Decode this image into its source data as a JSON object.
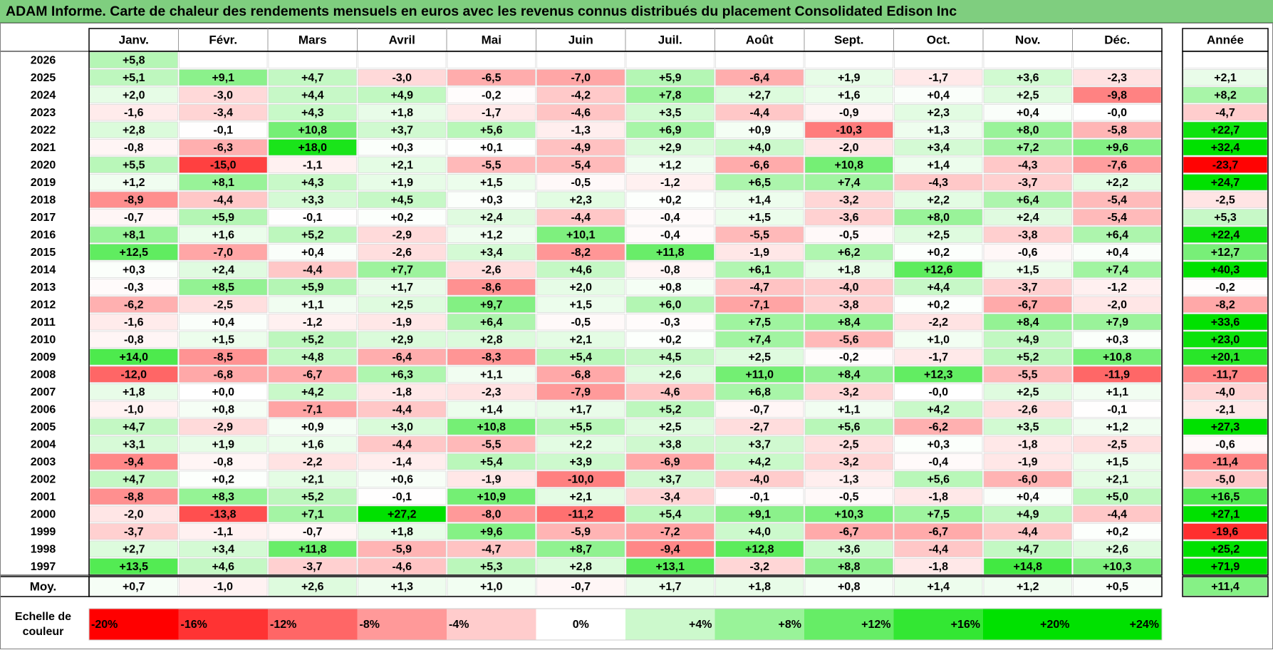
{
  "title": "ADAM Informe. Carte de chaleur des rendements mensuels en euros avec les revenus connus distribués du placement Consolidated Edison Inc",
  "chart_data": {
    "type": "heatmap",
    "months": [
      "Janv.",
      "Févr.",
      "Mars",
      "Avril",
      "Mai",
      "Juin",
      "Juil.",
      "Août",
      "Sept.",
      "Oct.",
      "Nov.",
      "Déc."
    ],
    "year_header": "Année",
    "rows": [
      {
        "year": "2026",
        "values": [
          "+5,8",
          "",
          "",
          "",
          "",
          "",
          "",
          "",
          "",
          "",
          "",
          ""
        ],
        "annual": ""
      },
      {
        "year": "2025",
        "values": [
          "+5,1",
          "+9,1",
          "+4,7",
          "-3,0",
          "-6,5",
          "-7,0",
          "+5,9",
          "-6,4",
          "+1,9",
          "-1,7",
          "+3,6",
          "-2,3"
        ],
        "annual": "+2,1"
      },
      {
        "year": "2024",
        "values": [
          "+2,0",
          "-3,0",
          "+4,4",
          "+4,9",
          "-0,2",
          "-4,2",
          "+7,8",
          "+2,7",
          "+1,6",
          "+0,4",
          "+2,5",
          "-9,8"
        ],
        "annual": "+8,2"
      },
      {
        "year": "2023",
        "values": [
          "-1,6",
          "-3,4",
          "+4,3",
          "+1,8",
          "-1,7",
          "-4,6",
          "+3,5",
          "-4,4",
          "-0,9",
          "+2,3",
          "+0,4",
          "-0,0"
        ],
        "annual": "-4,7"
      },
      {
        "year": "2022",
        "values": [
          "+2,8",
          "-0,1",
          "+10,8",
          "+3,7",
          "+5,6",
          "-1,3",
          "+6,9",
          "+0,9",
          "-10,3",
          "+1,3",
          "+8,0",
          "-5,8"
        ],
        "annual": "+22,7"
      },
      {
        "year": "2021",
        "values": [
          "-0,8",
          "-6,3",
          "+18,0",
          "+0,3",
          "+0,1",
          "-4,9",
          "+2,9",
          "+4,0",
          "-2,0",
          "+3,4",
          "+7,2",
          "+9,6"
        ],
        "annual": "+32,4"
      },
      {
        "year": "2020",
        "values": [
          "+5,5",
          "-15,0",
          "-1,1",
          "+2,1",
          "-5,5",
          "-5,4",
          "+1,2",
          "-6,6",
          "+10,8",
          "+1,4",
          "-4,3",
          "-7,6"
        ],
        "annual": "-23,7"
      },
      {
        "year": "2019",
        "values": [
          "+1,2",
          "+8,1",
          "+4,3",
          "+1,9",
          "+1,5",
          "-0,5",
          "-1,2",
          "+6,5",
          "+7,4",
          "-4,3",
          "-3,7",
          "+2,2"
        ],
        "annual": "+24,7"
      },
      {
        "year": "2018",
        "values": [
          "-8,9",
          "-4,4",
          "+3,3",
          "+4,5",
          "+0,3",
          "+2,3",
          "+0,2",
          "+1,4",
          "-3,2",
          "+2,2",
          "+6,4",
          "-5,4"
        ],
        "annual": "-2,5"
      },
      {
        "year": "2017",
        "values": [
          "-0,7",
          "+5,9",
          "-0,1",
          "+0,2",
          "+2,4",
          "-4,4",
          "-0,4",
          "+1,5",
          "-3,6",
          "+8,0",
          "+2,4",
          "-5,4"
        ],
        "annual": "+5,3"
      },
      {
        "year": "2016",
        "values": [
          "+8,1",
          "+1,6",
          "+5,2",
          "-2,9",
          "+1,2",
          "+10,1",
          "-0,4",
          "-5,5",
          "-0,5",
          "+2,5",
          "-3,8",
          "+6,4"
        ],
        "annual": "+22,4"
      },
      {
        "year": "2015",
        "values": [
          "+12,5",
          "-7,0",
          "+0,4",
          "-2,6",
          "+3,4",
          "-8,2",
          "+11,8",
          "-1,9",
          "+6,2",
          "+0,2",
          "-0,6",
          "+0,4"
        ],
        "annual": "+12,7"
      },
      {
        "year": "2014",
        "values": [
          "+0,3",
          "+2,4",
          "-4,4",
          "+7,7",
          "-2,6",
          "+4,6",
          "-0,8",
          "+6,1",
          "+1,8",
          "+12,6",
          "+1,5",
          "+7,4"
        ],
        "annual": "+40,3"
      },
      {
        "year": "2013",
        "values": [
          "-0,3",
          "+8,5",
          "+5,9",
          "+1,7",
          "-8,6",
          "+2,0",
          "+0,8",
          "-4,7",
          "-4,0",
          "+4,4",
          "-3,7",
          "-1,2"
        ],
        "annual": "-0,2"
      },
      {
        "year": "2012",
        "values": [
          "-6,2",
          "-2,5",
          "+1,1",
          "+2,5",
          "+9,7",
          "+1,5",
          "+6,0",
          "-7,1",
          "-3,8",
          "+0,2",
          "-6,7",
          "-2,0"
        ],
        "annual": "-8,2"
      },
      {
        "year": "2011",
        "values": [
          "-1,6",
          "+0,4",
          "-1,2",
          "-1,9",
          "+6,4",
          "-0,5",
          "-0,3",
          "+7,5",
          "+8,4",
          "-2,2",
          "+8,4",
          "+7,9"
        ],
        "annual": "+33,6"
      },
      {
        "year": "2010",
        "values": [
          "-0,8",
          "+1,5",
          "+5,2",
          "+2,9",
          "+2,8",
          "+2,1",
          "+0,2",
          "+7,4",
          "-5,6",
          "+1,0",
          "+4,9",
          "+0,3"
        ],
        "annual": "+23,0"
      },
      {
        "year": "2009",
        "values": [
          "+14,0",
          "-8,5",
          "+4,8",
          "-6,4",
          "-8,3",
          "+5,4",
          "+4,5",
          "+2,5",
          "-0,2",
          "-1,7",
          "+5,2",
          "+10,8"
        ],
        "annual": "+20,1"
      },
      {
        "year": "2008",
        "values": [
          "-12,0",
          "-6,8",
          "-6,7",
          "+6,3",
          "+1,1",
          "-6,8",
          "+2,6",
          "+11,0",
          "+8,4",
          "+12,3",
          "-5,5",
          "-11,9"
        ],
        "annual": "-11,7"
      },
      {
        "year": "2007",
        "values": [
          "+1,8",
          "+0,0",
          "+4,2",
          "-1,8",
          "-2,3",
          "-7,9",
          "-4,6",
          "+6,8",
          "-3,2",
          "-0,0",
          "+2,5",
          "+1,1"
        ],
        "annual": "-4,0"
      },
      {
        "year": "2006",
        "values": [
          "-1,0",
          "+0,8",
          "-7,1",
          "-4,4",
          "+1,4",
          "+1,7",
          "+5,2",
          "-0,7",
          "+1,1",
          "+4,2",
          "-2,6",
          "-0,1"
        ],
        "annual": "-2,1"
      },
      {
        "year": "2005",
        "values": [
          "+4,7",
          "-2,9",
          "+0,9",
          "+3,0",
          "+10,8",
          "+5,5",
          "+2,5",
          "-2,7",
          "+5,6",
          "-6,2",
          "+3,5",
          "+1,2"
        ],
        "annual": "+27,3"
      },
      {
        "year": "2004",
        "values": [
          "+3,1",
          "+1,9",
          "+1,6",
          "-4,4",
          "-5,5",
          "+2,2",
          "+3,8",
          "+3,7",
          "-2,5",
          "+0,3",
          "-1,8",
          "-2,5"
        ],
        "annual": "-0,6"
      },
      {
        "year": "2003",
        "values": [
          "-9,4",
          "-0,8",
          "-2,2",
          "-1,4",
          "+5,4",
          "+3,9",
          "-6,9",
          "+4,2",
          "-3,2",
          "-0,4",
          "-1,9",
          "+1,5"
        ],
        "annual": "-11,4"
      },
      {
        "year": "2002",
        "values": [
          "+4,7",
          "+0,2",
          "+2,1",
          "+0,6",
          "-1,9",
          "-10,0",
          "+3,7",
          "-4,0",
          "-1,3",
          "+5,6",
          "-6,0",
          "+2,1"
        ],
        "annual": "-5,0"
      },
      {
        "year": "2001",
        "values": [
          "-8,8",
          "+8,3",
          "+5,2",
          "-0,1",
          "+10,9",
          "+2,1",
          "-3,4",
          "-0,1",
          "-0,5",
          "-1,8",
          "+0,4",
          "+5,0"
        ],
        "annual": "+16,5"
      },
      {
        "year": "2000",
        "values": [
          "-2,0",
          "-13,8",
          "+7,1",
          "+27,2",
          "-8,0",
          "-11,2",
          "+5,4",
          "+9,1",
          "+10,3",
          "+7,5",
          "+4,9",
          "-4,4"
        ],
        "annual": "+27,1"
      },
      {
        "year": "1999",
        "values": [
          "-3,7",
          "-1,1",
          "-0,7",
          "+1,8",
          "+9,6",
          "-5,9",
          "-7,2",
          "+4,0",
          "-6,7",
          "-6,7",
          "-4,4",
          "+0,2"
        ],
        "annual": "-19,6"
      },
      {
        "year": "1998",
        "values": [
          "+2,7",
          "+3,4",
          "+11,8",
          "-5,9",
          "-4,7",
          "+8,7",
          "-9,4",
          "+12,8",
          "+3,6",
          "-4,4",
          "+4,7",
          "+2,6"
        ],
        "annual": "+25,2"
      },
      {
        "year": "1997",
        "values": [
          "+13,5",
          "+4,6",
          "-3,7",
          "-4,6",
          "+5,3",
          "+2,8",
          "+13,1",
          "-3,2",
          "+8,8",
          "-1,8",
          "+14,8",
          "+10,3"
        ],
        "annual": "+71,9"
      }
    ],
    "average": {
      "label": "Moy.",
      "values": [
        "+0,7",
        "-1,0",
        "+2,6",
        "+1,3",
        "+1,0",
        "-0,7",
        "+1,7",
        "+1,8",
        "+0,8",
        "+1,4",
        "+1,2",
        "+0,5"
      ],
      "annual": "+11,4"
    },
    "scale": {
      "label_line1": "Echelle de",
      "label_line2": "couleur",
      "steps": [
        "-20%",
        "-16%",
        "-12%",
        "-8%",
        "-4%",
        "0%",
        "+4%",
        "+8%",
        "+12%",
        "+16%",
        "+20%",
        "+24%"
      ],
      "values": [
        -20,
        -16,
        -12,
        -8,
        -4,
        0,
        4,
        8,
        12,
        16,
        20,
        24
      ]
    },
    "colors": {
      "negative": "#ff0000",
      "neutral": "#ffffff",
      "positive": "#00e000"
    }
  }
}
